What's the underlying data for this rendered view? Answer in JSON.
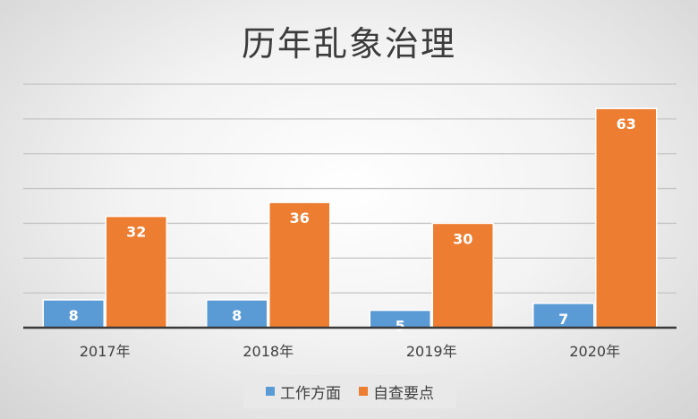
{
  "chart_data": {
    "type": "bar",
    "title": "历年乱象治理",
    "categories": [
      "2017年",
      "2018年",
      "2019年",
      "2020年"
    ],
    "series": [
      {
        "name": "工作方面",
        "values": [
          8,
          8,
          5,
          7
        ],
        "color": "#5b9bd5"
      },
      {
        "name": "自查要点",
        "values": [
          32,
          36,
          30,
          63
        ],
        "color": "#ed7d31"
      }
    ],
    "xlabel": "",
    "ylabel": "",
    "ylim": [
      0,
      70
    ],
    "grid": true,
    "data_labels": true,
    "legend_position": "bottom"
  }
}
